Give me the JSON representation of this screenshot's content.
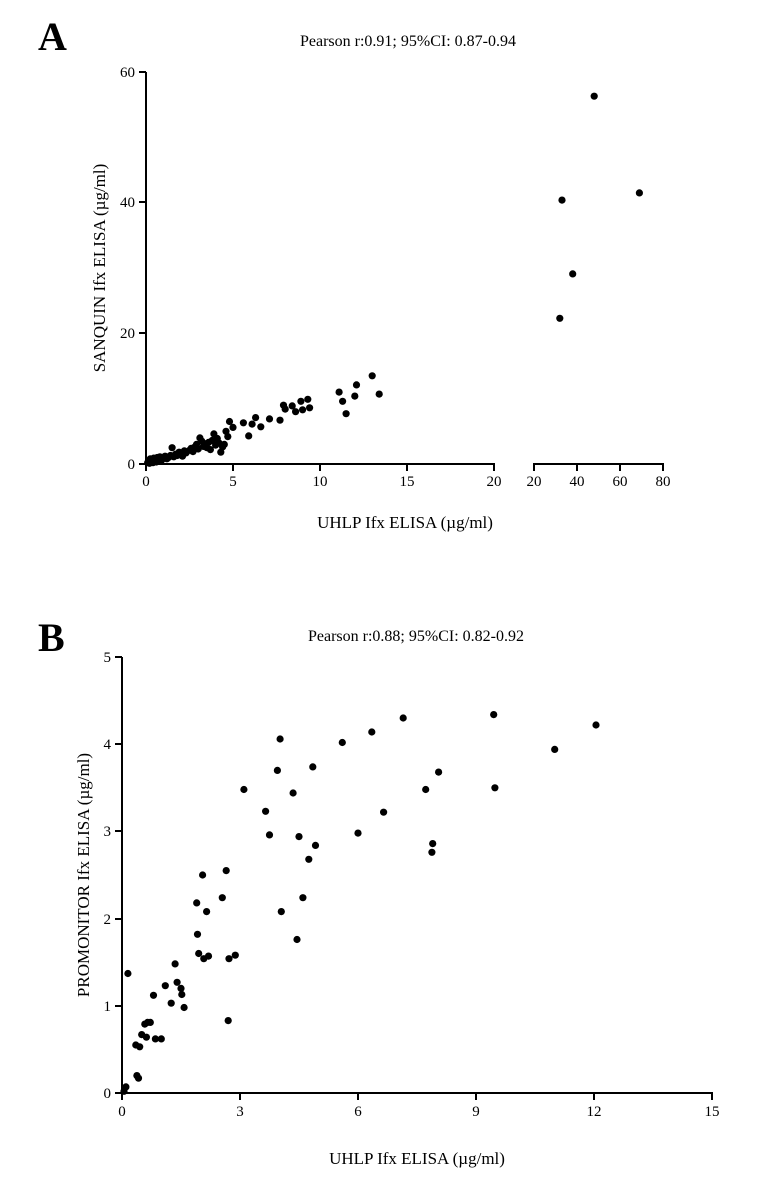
{
  "chart_data": [
    {
      "type": "scatter",
      "panel_label": "A",
      "title": "Pearson r:0.91; 95%CI: 0.87-0.94",
      "xlabel": "UHLP Ifx ELISA (µg/ml)",
      "ylabel": "SANQUIN Ifx ELISA (µg/ml)",
      "ylim": [
        0,
        60
      ],
      "yticks": [
        "0",
        "20",
        "40",
        "60"
      ],
      "broken_x_axis": true,
      "x_segments": [
        {
          "range": [
            0,
            20
          ],
          "ticks": [
            0,
            5,
            10,
            15,
            20
          ],
          "tick_labels": [
            "0",
            "5",
            "10",
            "15",
            "20"
          ]
        },
        {
          "range": [
            20,
            80
          ],
          "ticks": [
            20,
            40,
            60,
            80
          ],
          "tick_labels": [
            "20",
            "40",
            "60",
            "80"
          ]
        }
      ],
      "points": [
        [
          0.1,
          0.2
        ],
        [
          0.15,
          0.5
        ],
        [
          0.2,
          0.1
        ],
        [
          0.25,
          0.8
        ],
        [
          0.3,
          0.3
        ],
        [
          0.35,
          0.6
        ],
        [
          0.4,
          0.2
        ],
        [
          0.45,
          0.9
        ],
        [
          0.5,
          0.4
        ],
        [
          0.55,
          0.7
        ],
        [
          0.6,
          0.3
        ],
        [
          0.65,
          1.0
        ],
        [
          0.7,
          0.5
        ],
        [
          0.75,
          0.8
        ],
        [
          0.8,
          1.1
        ],
        [
          0.9,
          0.6
        ],
        [
          1.0,
          0.9
        ],
        [
          1.1,
          1.2
        ],
        [
          1.2,
          0.8
        ],
        [
          1.3,
          1.0
        ],
        [
          1.4,
          1.3
        ],
        [
          1.5,
          2.5
        ],
        [
          1.6,
          1.1
        ],
        [
          1.7,
          1.5
        ],
        [
          1.8,
          1.3
        ],
        [
          1.9,
          1.8
        ],
        [
          2.0,
          1.6
        ],
        [
          2.1,
          1.2
        ],
        [
          2.2,
          2.0
        ],
        [
          2.3,
          1.7
        ],
        [
          2.5,
          2.1
        ],
        [
          2.6,
          2.4
        ],
        [
          2.7,
          1.9
        ],
        [
          2.8,
          2.6
        ],
        [
          2.9,
          3.0
        ],
        [
          3.0,
          2.3
        ],
        [
          3.1,
          4.0
        ],
        [
          3.2,
          3.5
        ],
        [
          3.3,
          2.7
        ],
        [
          3.4,
          3.1
        ],
        [
          3.5,
          2.5
        ],
        [
          3.6,
          3.3
        ],
        [
          3.7,
          2.2
        ],
        [
          3.8,
          3.6
        ],
        [
          3.9,
          4.6
        ],
        [
          4.0,
          2.9
        ],
        [
          4.1,
          3.9
        ],
        [
          4.2,
          3.2
        ],
        [
          4.3,
          1.8
        ],
        [
          4.4,
          2.6
        ],
        [
          4.5,
          3.0
        ],
        [
          4.6,
          5.0
        ],
        [
          4.7,
          4.2
        ],
        [
          4.8,
          6.5
        ],
        [
          5.0,
          5.6
        ],
        [
          5.6,
          6.3
        ],
        [
          5.9,
          4.3
        ],
        [
          6.1,
          6.1
        ],
        [
          6.3,
          7.1
        ],
        [
          6.6,
          5.7
        ],
        [
          7.1,
          6.9
        ],
        [
          7.7,
          6.7
        ],
        [
          7.9,
          9.0
        ],
        [
          8.0,
          8.4
        ],
        [
          8.4,
          8.9
        ],
        [
          8.6,
          8.0
        ],
        [
          8.9,
          9.6
        ],
        [
          9.0,
          8.3
        ],
        [
          9.3,
          9.9
        ],
        [
          9.4,
          8.6
        ],
        [
          11.1,
          11.0
        ],
        [
          11.3,
          9.6
        ],
        [
          11.5,
          7.7
        ],
        [
          12.0,
          10.4
        ],
        [
          12.1,
          12.1
        ],
        [
          13.0,
          13.5
        ],
        [
          13.4,
          10.7
        ],
        [
          32.0,
          22.3
        ],
        [
          33.0,
          40.4
        ],
        [
          38.0,
          29.1
        ],
        [
          48.0,
          56.3
        ],
        [
          69.0,
          41.5
        ]
      ]
    },
    {
      "type": "scatter",
      "panel_label": "B",
      "title": "Pearson r:0.88; 95%CI: 0.82-0.92",
      "xlabel": "UHLP Ifx ELISA (µg/ml)",
      "ylabel": "PROMONITOR Ifx ELISA (µg/ml)",
      "xlim": [
        0,
        15
      ],
      "ylim": [
        0,
        5
      ],
      "xticks": [
        "0",
        "3",
        "6",
        "9",
        "12",
        "15"
      ],
      "yticks": [
        "0",
        "1",
        "2",
        "3",
        "4",
        "5"
      ],
      "points": [
        [
          0.05,
          0.02
        ],
        [
          0.1,
          0.07
        ],
        [
          0.15,
          1.37
        ],
        [
          0.35,
          0.55
        ],
        [
          0.38,
          0.2
        ],
        [
          0.42,
          0.17
        ],
        [
          0.45,
          0.53
        ],
        [
          0.5,
          0.67
        ],
        [
          0.58,
          0.79
        ],
        [
          0.62,
          0.64
        ],
        [
          0.65,
          0.81
        ],
        [
          0.72,
          0.81
        ],
        [
          0.8,
          1.12
        ],
        [
          0.85,
          0.62
        ],
        [
          1.0,
          0.62
        ],
        [
          1.1,
          1.23
        ],
        [
          1.25,
          1.03
        ],
        [
          1.35,
          1.48
        ],
        [
          1.4,
          1.27
        ],
        [
          1.5,
          1.2
        ],
        [
          1.52,
          1.13
        ],
        [
          1.58,
          0.98
        ],
        [
          1.9,
          2.18
        ],
        [
          1.92,
          1.82
        ],
        [
          1.95,
          1.6
        ],
        [
          2.05,
          2.5
        ],
        [
          2.08,
          1.54
        ],
        [
          2.15,
          2.08
        ],
        [
          2.2,
          1.57
        ],
        [
          2.55,
          2.24
        ],
        [
          2.65,
          2.55
        ],
        [
          2.7,
          0.83
        ],
        [
          2.72,
          1.54
        ],
        [
          2.88,
          1.58
        ],
        [
          3.1,
          3.48
        ],
        [
          3.65,
          3.23
        ],
        [
          3.75,
          2.96
        ],
        [
          3.95,
          3.7
        ],
        [
          4.02,
          4.06
        ],
        [
          4.05,
          2.08
        ],
        [
          4.35,
          3.44
        ],
        [
          4.45,
          1.76
        ],
        [
          4.5,
          2.94
        ],
        [
          4.6,
          2.24
        ],
        [
          4.75,
          2.68
        ],
        [
          4.85,
          3.74
        ],
        [
          4.92,
          2.84
        ],
        [
          5.6,
          4.02
        ],
        [
          6.0,
          2.98
        ],
        [
          6.35,
          4.14
        ],
        [
          6.65,
          3.22
        ],
        [
          7.15,
          4.3
        ],
        [
          7.72,
          3.48
        ],
        [
          7.88,
          2.76
        ],
        [
          7.9,
          2.86
        ],
        [
          8.05,
          3.68
        ],
        [
          9.45,
          4.34
        ],
        [
          9.48,
          3.5
        ],
        [
          11.0,
          3.94
        ],
        [
          12.05,
          4.22
        ]
      ]
    }
  ]
}
